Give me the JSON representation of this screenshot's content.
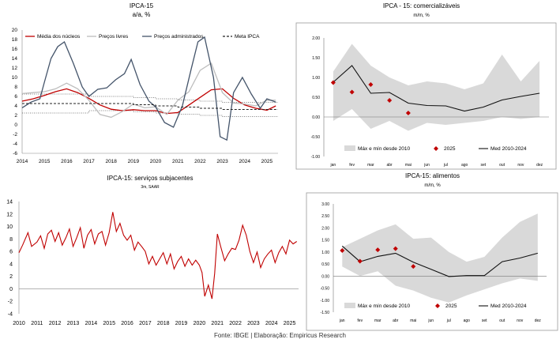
{
  "footer": "Fonte: IBGE | Elaboração: Empiricus Research",
  "chart_data": [
    {
      "id": "c1",
      "type": "line",
      "title": "IPCA-15",
      "subtitle": "a/a, %",
      "x_ticks": [
        "2014",
        "2015",
        "2016",
        "2017",
        "2018",
        "2019",
        "2020",
        "2021",
        "2022",
        "2023",
        "2024",
        "2025"
      ],
      "x_range": [
        2014,
        2025.5
      ],
      "ylim": [
        -6,
        20
      ],
      "y_ticks": [
        -6,
        -4,
        -2,
        0,
        2,
        4,
        6,
        8,
        10,
        12,
        14,
        16,
        18,
        20
      ],
      "legend_position": "top",
      "grid": false,
      "series": [
        {
          "name": "Média dos núcleos",
          "color": "#c00000",
          "style": "solid",
          "x": [
            2014,
            2014.5,
            2015,
            2015.5,
            2016,
            2016.5,
            2017,
            2017.5,
            2018,
            2018.5,
            2019,
            2019.5,
            2020,
            2020.5,
            2021,
            2021.5,
            2022,
            2022.5,
            2023,
            2023.5,
            2024,
            2024.5,
            2025,
            2025.4
          ],
          "y": [
            5.0,
            5.5,
            6.2,
            7.0,
            7.6,
            6.8,
            5.6,
            4.2,
            3.3,
            3.0,
            3.2,
            3.0,
            3.0,
            2.4,
            2.6,
            4.2,
            5.8,
            7.4,
            7.6,
            5.6,
            4.2,
            3.5,
            3.1,
            4.0
          ]
        },
        {
          "name": "Preços livres",
          "color": "#bdbdbd",
          "style": "solid",
          "x": [
            2014,
            2014.5,
            2015,
            2015.5,
            2016,
            2016.5,
            2017,
            2017.5,
            2018,
            2018.5,
            2019,
            2019.5,
            2020,
            2020.5,
            2021,
            2021.5,
            2022,
            2022.5,
            2023,
            2023.5,
            2024,
            2024.5,
            2025,
            2025.4
          ],
          "y": [
            6.6,
            6.8,
            7.0,
            7.6,
            8.8,
            7.6,
            5.2,
            2.2,
            1.6,
            2.8,
            4.4,
            3.6,
            3.8,
            2.2,
            5.2,
            7.0,
            11.5,
            13.0,
            6.8,
            4.6,
            4.4,
            4.0,
            5.2,
            5.2
          ]
        },
        {
          "name": "Preços administrados",
          "color": "#44546a",
          "style": "solid",
          "x": [
            2014,
            2014.4,
            2014.8,
            2015,
            2015.3,
            2015.6,
            2015.9,
            2016.3,
            2016.7,
            2017,
            2017.4,
            2017.8,
            2018.2,
            2018.6,
            2018.9,
            2019.3,
            2019.7,
            2020,
            2020.4,
            2020.8,
            2021.2,
            2021.6,
            2021.9,
            2022.2,
            2022.6,
            2022.9,
            2023.2,
            2023.5,
            2023.9,
            2024.3,
            2024.7,
            2025,
            2025.4
          ],
          "y": [
            3.6,
            4.8,
            5.5,
            9.0,
            14.0,
            16.5,
            17.5,
            13.0,
            8.0,
            6.0,
            7.5,
            7.8,
            9.5,
            10.8,
            13.8,
            8.5,
            5.0,
            3.8,
            0.5,
            -0.5,
            4.0,
            11.8,
            17.5,
            18.5,
            10.0,
            -2.5,
            -3.2,
            6.8,
            10.0,
            6.5,
            3.5,
            5.5,
            4.8
          ]
        },
        {
          "name": "Meta IPCA",
          "color": "#222222",
          "style": "dashed",
          "x": [
            2014,
            2016.99,
            2017,
            2017.99,
            2018,
            2018.99,
            2019,
            2019.99,
            2020,
            2020.99,
            2021,
            2021.99,
            2022,
            2022.99,
            2023,
            2025.5
          ],
          "y": [
            4.5,
            4.5,
            4.5,
            4.5,
            4.5,
            4.5,
            4.25,
            4.25,
            4.0,
            4.0,
            3.75,
            3.75,
            3.5,
            3.5,
            3.25,
            3.25
          ]
        }
      ],
      "bands": [
        {
          "color": "#555555",
          "style": "dotted",
          "x": [
            2014,
            2016.99,
            2017,
            2017.99,
            2018,
            2018.99,
            2019,
            2019.99,
            2020,
            2020.99,
            2021,
            2021.99,
            2022,
            2022.99,
            2023,
            2025.5
          ],
          "y": [
            6.5,
            6.5,
            6.0,
            6.0,
            6.0,
            6.0,
            5.75,
            5.75,
            5.5,
            5.5,
            5.25,
            5.25,
            5.0,
            5.0,
            4.75,
            4.75
          ]
        },
        {
          "color": "#555555",
          "style": "dotted",
          "x": [
            2014,
            2016.99,
            2017,
            2017.99,
            2018,
            2018.99,
            2019,
            2019.99,
            2020,
            2020.99,
            2021,
            2021.99,
            2022,
            2022.99,
            2023,
            2025.5
          ],
          "y": [
            2.5,
            2.5,
            3.0,
            3.0,
            3.0,
            3.0,
            2.75,
            2.75,
            2.5,
            2.5,
            2.25,
            2.25,
            2.0,
            2.0,
            1.75,
            1.75
          ]
        }
      ]
    },
    {
      "id": "c2",
      "type": "line",
      "title": "IPCA - 15: comercializáveis",
      "subtitle": "m/m, %",
      "categories": [
        "jan",
        "fev",
        "mar",
        "abr",
        "mai",
        "jun",
        "jul",
        "ago",
        "set",
        "out",
        "nov",
        "dez"
      ],
      "ylim": [
        -1.0,
        2.0
      ],
      "y_ticks": [
        "-1.00",
        "-0.50",
        "0.00",
        "0.50",
        "1.00",
        "1.50",
        "2.00"
      ],
      "legend_position": "bottom",
      "grid": false,
      "range_label": "Máx e mín desde 2010",
      "range_max": [
        1.15,
        1.85,
        1.3,
        1.0,
        0.8,
        0.9,
        0.85,
        0.7,
        0.85,
        1.58,
        0.9,
        1.42
      ],
      "range_min": [
        -0.1,
        0.2,
        -0.3,
        -0.1,
        -0.35,
        -0.15,
        -0.2,
        -0.15,
        -0.1,
        0.0,
        -0.05,
        0.0
      ],
      "series": [
        {
          "name": "2025",
          "type": "scatter",
          "color": "#c00000",
          "values": [
            0.87,
            0.63,
            0.82,
            0.42,
            0.1,
            null,
            null,
            null,
            null,
            null,
            null,
            null
          ]
        },
        {
          "name": "Med 2010-2024",
          "type": "line",
          "color": "#111111",
          "values": [
            0.88,
            1.3,
            0.6,
            0.62,
            0.35,
            0.29,
            0.28,
            0.15,
            0.25,
            0.43,
            0.52,
            0.6
          ]
        }
      ]
    },
    {
      "id": "c3",
      "type": "line",
      "title": "IPCA-15: serviços subjacentes",
      "subtitle": "3m, SAAR",
      "x_ticks": [
        "2010",
        "2011",
        "2012",
        "2013",
        "2014",
        "2015",
        "2016",
        "2017",
        "2018",
        "2019",
        "2020",
        "2021",
        "2022",
        "2023",
        "2024",
        "2025"
      ],
      "x_range": [
        2010,
        2025.5
      ],
      "ylim": [
        -4,
        14
      ],
      "y_ticks": [
        -4,
        -2,
        0,
        2,
        4,
        6,
        8,
        10,
        12,
        14
      ],
      "grid": false,
      "series": [
        {
          "name": "",
          "color": "#c00000",
          "x": [
            2010,
            2010.2,
            2010.5,
            2010.7,
            2011,
            2011.2,
            2011.4,
            2011.6,
            2011.8,
            2012,
            2012.2,
            2012.4,
            2012.6,
            2012.8,
            2013,
            2013.2,
            2013.4,
            2013.6,
            2013.8,
            2014,
            2014.2,
            2014.4,
            2014.6,
            2014.8,
            2015,
            2015.2,
            2015.4,
            2015.6,
            2015.8,
            2016,
            2016.2,
            2016.4,
            2016.6,
            2016.8,
            2017,
            2017.2,
            2017.4,
            2017.6,
            2017.8,
            2018,
            2018.2,
            2018.4,
            2018.6,
            2018.8,
            2019,
            2019.2,
            2019.4,
            2019.6,
            2019.8,
            2020,
            2020.15,
            2020.3,
            2020.5,
            2020.7,
            2020.85,
            2021,
            2021.2,
            2021.4,
            2021.6,
            2021.8,
            2022,
            2022.2,
            2022.4,
            2022.6,
            2022.8,
            2023,
            2023.2,
            2023.4,
            2023.6,
            2023.8,
            2024,
            2024.2,
            2024.4,
            2024.6,
            2024.8,
            2025,
            2025.2,
            2025.4
          ],
          "y": [
            5.8,
            7.0,
            9.0,
            6.8,
            7.5,
            8.5,
            6.5,
            8.8,
            9.4,
            7.6,
            9.0,
            7.0,
            8.2,
            9.6,
            6.8,
            8.2,
            9.8,
            6.5,
            8.6,
            9.5,
            7.2,
            8.8,
            9.2,
            7.0,
            9.0,
            12.3,
            9.2,
            10.5,
            8.6,
            7.8,
            8.6,
            6.2,
            7.5,
            6.8,
            6.0,
            4.0,
            5.2,
            3.8,
            4.8,
            5.8,
            4.0,
            5.6,
            3.2,
            4.4,
            5.2,
            3.6,
            4.8,
            3.8,
            4.6,
            3.8,
            2.6,
            -1.2,
            0.6,
            -1.6,
            2.5,
            8.8,
            6.6,
            4.5,
            5.6,
            6.5,
            6.3,
            7.8,
            10.2,
            8.6,
            6.0,
            4.2,
            5.9,
            3.4,
            4.8,
            5.6,
            6.2,
            4.2,
            5.8,
            6.8,
            5.6,
            7.8,
            7.2,
            7.6
          ]
        }
      ]
    },
    {
      "id": "c4",
      "type": "line",
      "title": "IPCA-15: alimentos",
      "subtitle": "m/m, %",
      "categories": [
        "jan",
        "fev",
        "mar",
        "abr",
        "mai",
        "jun",
        "jul",
        "ago",
        "set",
        "out",
        "nov",
        "dez"
      ],
      "ylim": [
        -1.5,
        3.0
      ],
      "y_ticks": [
        "-1.50",
        "-1.00",
        "-0.50",
        "0.00",
        "0.50",
        "1.00",
        "1.50",
        "2.00",
        "2.50",
        "3.00"
      ],
      "legend_position": "bottom",
      "grid": false,
      "range_label": "Máx e mín desde 2010",
      "range_max": [
        1.2,
        1.55,
        1.9,
        2.15,
        1.55,
        1.6,
        1.0,
        0.6,
        0.8,
        1.6,
        2.25,
        2.6
      ],
      "range_min": [
        0.4,
        0.0,
        0.2,
        -0.4,
        -0.6,
        -0.9,
        -1.1,
        -0.8,
        -0.55,
        -0.3,
        -0.1,
        -0.2
      ],
      "series": [
        {
          "name": "2025",
          "type": "scatter",
          "color": "#c00000",
          "values": [
            1.06,
            0.62,
            1.09,
            1.14,
            0.4,
            null,
            null,
            null,
            null,
            null,
            null,
            null
          ]
        },
        {
          "name": "Med 2010-2024",
          "type": "line",
          "color": "#111111",
          "values": [
            1.25,
            0.6,
            0.82,
            0.95,
            0.58,
            0.28,
            -0.02,
            0.02,
            0.02,
            0.6,
            0.75,
            0.95
          ]
        }
      ]
    }
  ]
}
